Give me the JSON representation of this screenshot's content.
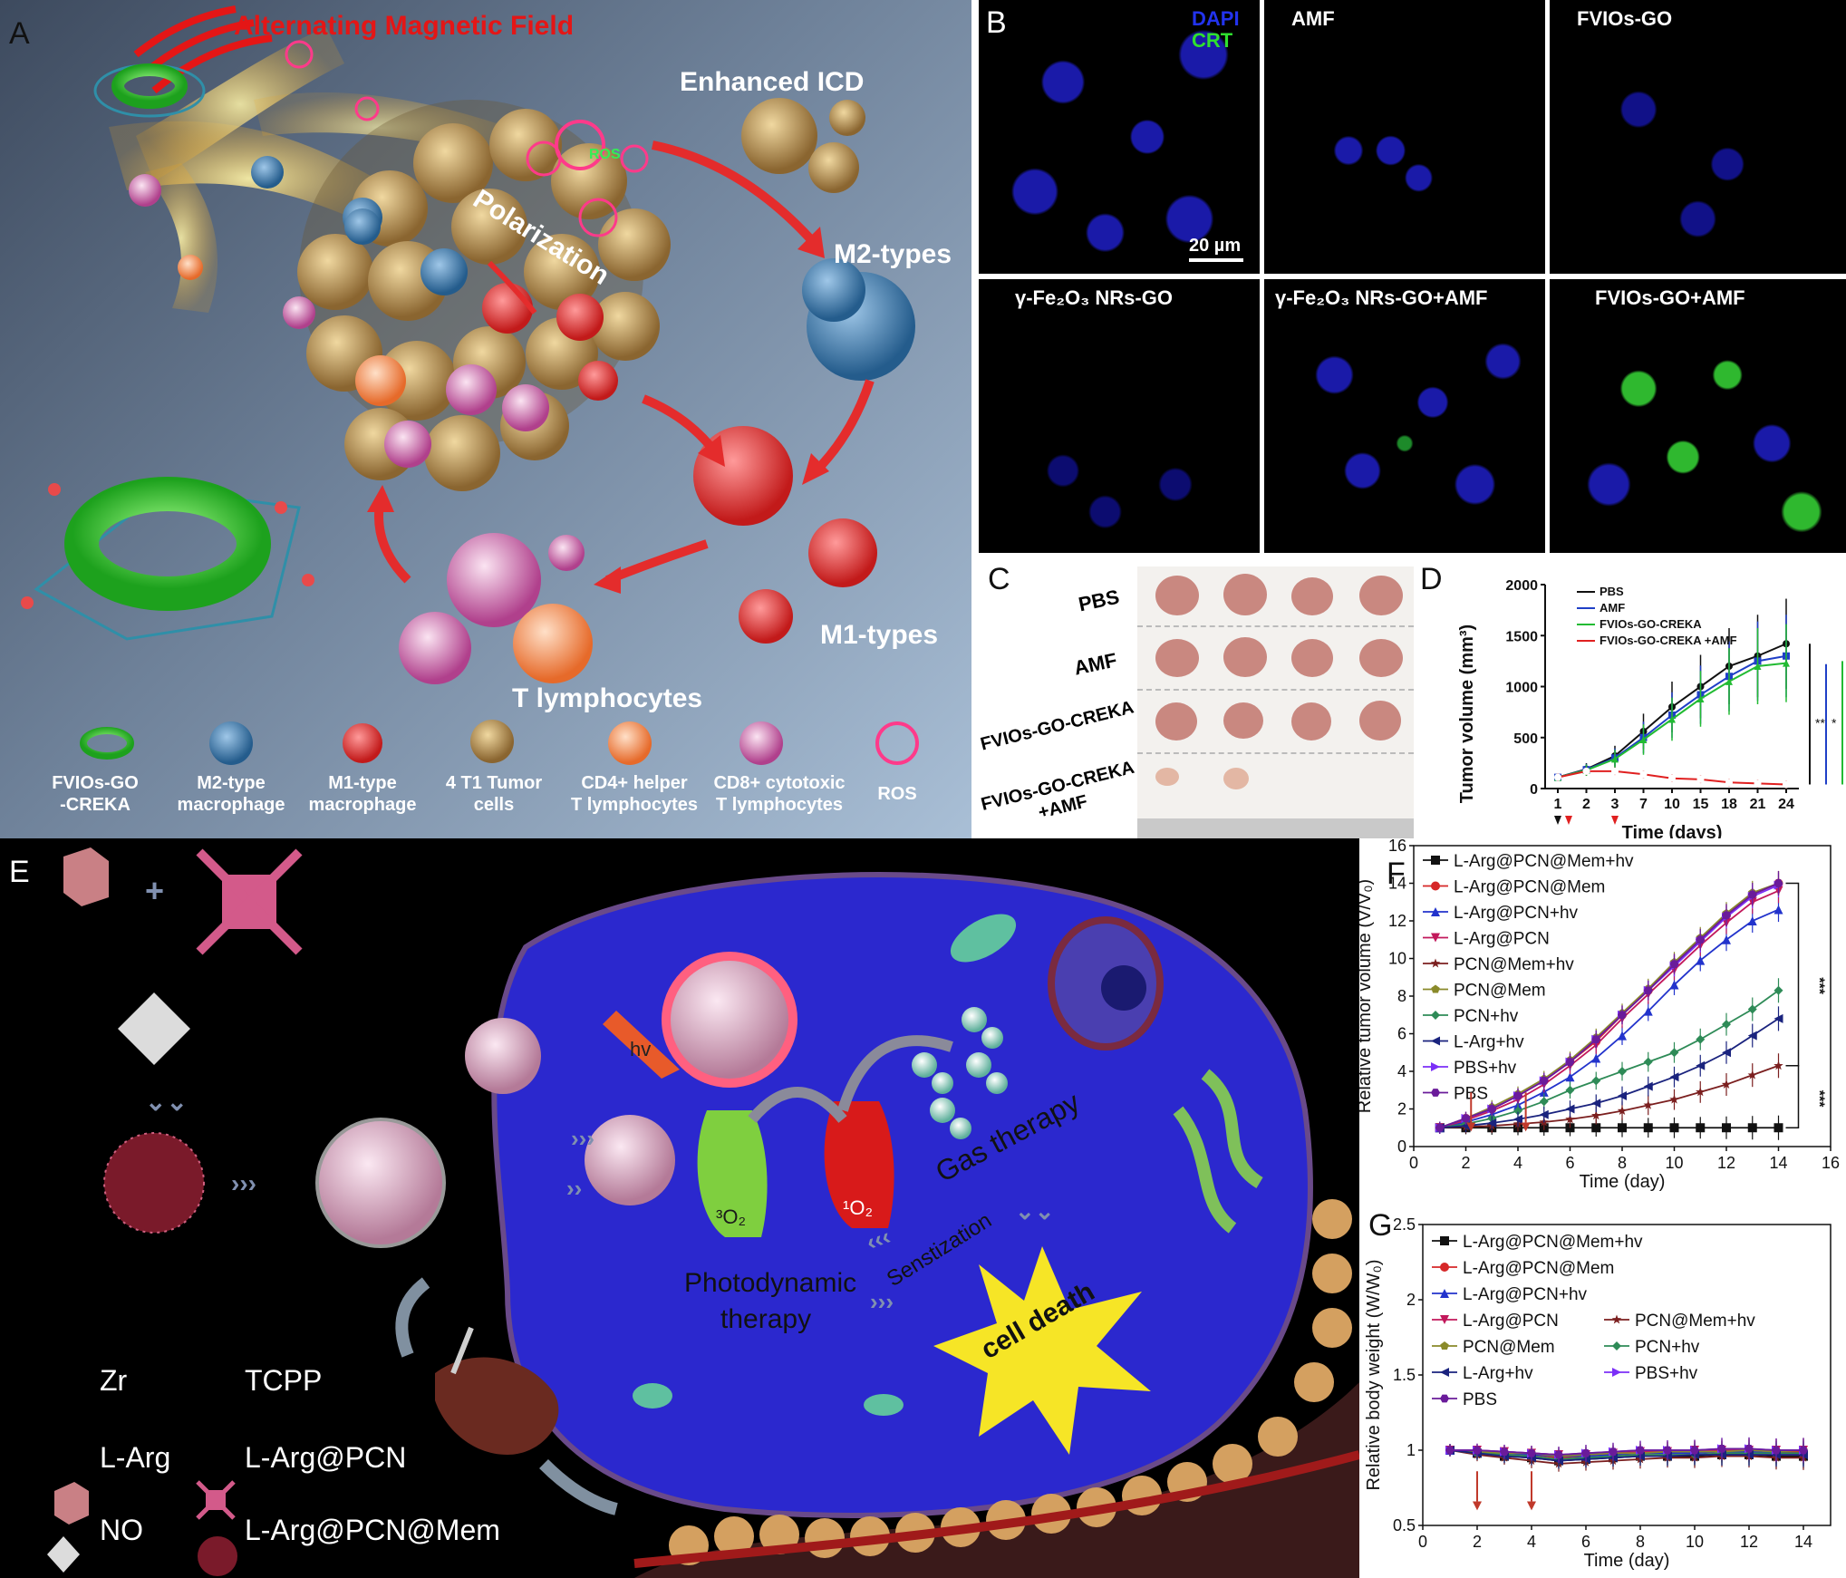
{
  "panelA": {
    "label": "A",
    "field_text": "Alternating Magnetic Field",
    "icd_text": "Enhanced ICD",
    "polarization_text": "Polarization",
    "m2_text": "M2-types",
    "m1_text": "M1-types",
    "t_text": "T lymphocytes",
    "ros_small": "ROS",
    "legend": [
      {
        "line1": "FVIOs-GO",
        "line2": "-CREKA",
        "icon": "green-torus-icon"
      },
      {
        "line1": "M2-type",
        "line2": "macrophage",
        "icon": "blue-cell-icon"
      },
      {
        "line1": "M1-type",
        "line2": "macrophage",
        "icon": "red-cell-icon"
      },
      {
        "line1": "4 T1 Tumor",
        "line2": "cells",
        "icon": "tumor-cell-icon"
      },
      {
        "line1": "CD4+ helper",
        "line2": "T lymphocytes",
        "icon": "orange-cell-icon"
      },
      {
        "line1": "CD8+ cytotoxic",
        "line2": "T lymphocytes",
        "icon": "pink-cell-icon"
      },
      {
        "line1": "ROS",
        "line2": "",
        "icon": "ros-ring-icon"
      }
    ]
  },
  "panelB": {
    "label": "B",
    "dapi": "DAPI",
    "crt": "CRT",
    "scale": "20 µm",
    "titles": [
      "",
      "AMF",
      "FVIOs-GO",
      "γ-Fe₂O₃ NRs-GO",
      "γ-Fe₂O₃ NRs-GO+AMF",
      "FVIOs-GO+AMF"
    ]
  },
  "panelC": {
    "label": "C",
    "rows": [
      "PBS",
      "AMF",
      "FVIOs-GO-CREKA",
      "FVIOs-GO-CREKA +AMF"
    ]
  },
  "panelD": {
    "label": "D",
    "chart_data": {
      "type": "line",
      "x": [
        "1",
        "2",
        "3",
        "7",
        "10",
        "15",
        "18",
        "21",
        "24"
      ],
      "xlabel": "Time (days)",
      "ylabel": "Tumor volume (mm³)",
      "ylim": [
        0,
        2000
      ],
      "yticks": [
        0,
        500,
        1000,
        1500,
        2000
      ],
      "series": [
        {
          "name": "PBS",
          "color": "#111111",
          "values": [
            110,
            190,
            320,
            560,
            800,
            1000,
            1200,
            1300,
            1420
          ]
        },
        {
          "name": "AMF",
          "color": "#1f3fc7",
          "values": [
            110,
            185,
            300,
            500,
            720,
            920,
            1100,
            1250,
            1300
          ]
        },
        {
          "name": "FVIOs-GO-CREKA",
          "color": "#22bb33",
          "values": [
            110,
            180,
            290,
            480,
            680,
            880,
            1050,
            1200,
            1230
          ]
        },
        {
          "name": "FVIOs-GO-CREKA +AMF",
          "color": "#e02020",
          "values": [
            110,
            170,
            170,
            140,
            100,
            90,
            60,
            50,
            40
          ]
        }
      ],
      "sig": [
        "**",
        "*",
        "*"
      ]
    }
  },
  "panelE": {
    "label": "E",
    "hv": "hv",
    "o2_triplet": "³O₂",
    "o2_singlet": "¹O₂",
    "pdt1": "Photodynamic",
    "pdt2": "therapy",
    "gas": "Gas therapy",
    "sens": "Senstization",
    "death": "cell death",
    "legend": [
      {
        "label": "Zr",
        "icon": "zr-cube-icon"
      },
      {
        "label": "TCPP",
        "icon": "tcpp-icon"
      },
      {
        "label": "L-Arg",
        "icon": "l-arg-octahedron-icon"
      },
      {
        "label": "L-Arg@PCN",
        "icon": "l-arg-pcn-icon"
      },
      {
        "label": "NO",
        "icon": "no-molecule-icon"
      },
      {
        "label": "L-Arg@PCN@Mem",
        "icon": "l-arg-pcn-mem-icon"
      }
    ]
  },
  "panelF": {
    "label": "F",
    "chart_data": {
      "type": "line",
      "x": [
        1,
        2,
        3,
        4,
        5,
        6,
        7,
        8,
        9,
        10,
        11,
        12,
        13,
        14
      ],
      "xlim": [
        0,
        16
      ],
      "xticks": [
        0,
        2,
        4,
        6,
        8,
        10,
        12,
        14,
        16
      ],
      "ylim": [
        0,
        16
      ],
      "yticks": [
        0,
        2,
        4,
        6,
        8,
        10,
        12,
        14,
        16
      ],
      "xlabel": "Time (day)",
      "ylabel": "Relative tumor volume (V/V₀)",
      "series": [
        {
          "name": "L-Arg@PCN@Mem+hv",
          "color": "#111111",
          "marker": "square",
          "values": [
            1,
            1,
            1,
            1,
            1,
            1,
            1,
            1,
            1,
            1,
            1,
            1,
            1,
            1
          ]
        },
        {
          "name": "L-Arg@PCN@Mem",
          "color": "#d62728",
          "marker": "circle",
          "values": [
            1,
            1.5,
            2.0,
            2.7,
            3.5,
            4.5,
            5.6,
            7.0,
            8.3,
            9.7,
            11.0,
            12.3,
            13.4,
            14.0
          ]
        },
        {
          "name": "L-Arg@PCN+hv",
          "color": "#2233cc",
          "marker": "triangle-up",
          "values": [
            1,
            1.3,
            1.7,
            2.2,
            2.9,
            3.7,
            4.7,
            5.9,
            7.2,
            8.6,
            9.9,
            11.0,
            12.0,
            12.6
          ]
        },
        {
          "name": "L-Arg@PCN",
          "color": "#c2185b",
          "marker": "triangle-down",
          "values": [
            1,
            1.4,
            1.9,
            2.5,
            3.3,
            4.3,
            5.4,
            6.8,
            8.1,
            9.4,
            10.7,
            11.9,
            13.0,
            13.6
          ]
        },
        {
          "name": "PCN@Mem+hv",
          "color": "#7b1f1f",
          "marker": "star",
          "values": [
            1,
            1.05,
            1.1,
            1.2,
            1.3,
            1.45,
            1.65,
            1.9,
            2.2,
            2.5,
            2.9,
            3.3,
            3.8,
            4.3
          ]
        },
        {
          "name": "PCN@Mem",
          "color": "#8a8a2a",
          "marker": "pentagon",
          "values": [
            1,
            1.5,
            2.1,
            2.8,
            3.6,
            4.6,
            5.8,
            7.1,
            8.4,
            9.8,
            11.1,
            12.4,
            13.5,
            14.0
          ]
        },
        {
          "name": "PCN+hv",
          "color": "#2e8b57",
          "marker": "diamond",
          "values": [
            1,
            1.2,
            1.5,
            1.9,
            2.4,
            3.0,
            3.5,
            4.0,
            4.5,
            5.0,
            5.7,
            6.5,
            7.3,
            8.3
          ]
        },
        {
          "name": "L-Arg+hv",
          "color": "#1a237e",
          "marker": "triangle-left",
          "values": [
            1,
            1.1,
            1.25,
            1.45,
            1.7,
            2.0,
            2.3,
            2.7,
            3.2,
            3.7,
            4.3,
            5.0,
            5.9,
            6.8
          ]
        },
        {
          "name": "PBS+hv",
          "color": "#7b2ff7",
          "marker": "triangle-right",
          "values": [
            1,
            1.5,
            2.0,
            2.7,
            3.5,
            4.5,
            5.7,
            7.0,
            8.3,
            9.6,
            10.9,
            12.2,
            13.3,
            13.9
          ]
        },
        {
          "name": "PBS",
          "color": "#6a1b9a",
          "marker": "hexagon",
          "values": [
            1,
            1.5,
            2.0,
            2.7,
            3.5,
            4.5,
            5.7,
            7.0,
            8.3,
            9.7,
            11.0,
            12.3,
            13.4,
            14.0
          ]
        }
      ],
      "arrows_at_day": [
        2.2,
        4.3
      ],
      "sig": [
        "***",
        "***"
      ]
    }
  },
  "panelG": {
    "label": "G",
    "chart_data": {
      "type": "line",
      "x": [
        1,
        2,
        3,
        4,
        5,
        6,
        7,
        8,
        9,
        10,
        11,
        12,
        13,
        14
      ],
      "xlim": [
        0,
        15
      ],
      "xticks": [
        0,
        2,
        4,
        6,
        8,
        10,
        12,
        14
      ],
      "ylim": [
        0.5,
        2.5
      ],
      "yticks": [
        0.5,
        1.0,
        1.5,
        2.0,
        2.5
      ],
      "xlabel": "Time (day)",
      "ylabel": "Relative body weight (W/W₀)",
      "series": [
        {
          "name": "L-Arg@PCN@Mem+hv",
          "color": "#111111",
          "marker": "square",
          "values": [
            1.0,
            0.98,
            0.96,
            0.95,
            0.93,
            0.94,
            0.95,
            0.96,
            0.96,
            0.96,
            0.97,
            0.97,
            0.96,
            0.96
          ]
        },
        {
          "name": "L-Arg@PCN@Mem",
          "color": "#d62728",
          "marker": "circle",
          "values": [
            1.0,
            0.99,
            0.98,
            0.97,
            0.95,
            0.96,
            0.97,
            0.98,
            0.99,
            0.99,
            0.99,
            1.0,
            0.99,
            0.99
          ]
        },
        {
          "name": "L-Arg@PCN+hv",
          "color": "#2233cc",
          "marker": "triangle-up",
          "values": [
            1.0,
            0.99,
            0.98,
            0.97,
            0.96,
            0.96,
            0.97,
            0.98,
            0.98,
            0.98,
            0.99,
            0.99,
            0.98,
            0.98
          ]
        },
        {
          "name": "L-Arg@PCN",
          "color": "#c2185b",
          "marker": "triangle-down",
          "values": [
            1.0,
            1.0,
            0.99,
            0.98,
            0.97,
            0.97,
            0.98,
            0.99,
            0.99,
            1.0,
            1.0,
            1.0,
            1.0,
            1.0
          ]
        },
        {
          "name": "PCN@Mem+hv",
          "color": "#7b1f1f",
          "marker": "star",
          "values": [
            1.0,
            0.97,
            0.95,
            0.93,
            0.91,
            0.92,
            0.93,
            0.94,
            0.95,
            0.95,
            0.96,
            0.96,
            0.95,
            0.95
          ]
        },
        {
          "name": "PCN@Mem",
          "color": "#8a8a2a",
          "marker": "pentagon",
          "values": [
            1.0,
            0.99,
            0.98,
            0.98,
            0.96,
            0.97,
            0.98,
            0.98,
            0.99,
            0.99,
            0.99,
            1.0,
            0.99,
            1.0
          ]
        },
        {
          "name": "PCN+hv",
          "color": "#2e8b57",
          "marker": "diamond",
          "values": [
            1.0,
            0.98,
            0.97,
            0.96,
            0.94,
            0.95,
            0.96,
            0.97,
            0.97,
            0.97,
            0.98,
            0.98,
            0.98,
            0.98
          ]
        },
        {
          "name": "L-Arg+hv",
          "color": "#1a237e",
          "marker": "triangle-left",
          "values": [
            1.0,
            0.98,
            0.96,
            0.95,
            0.93,
            0.94,
            0.95,
            0.96,
            0.96,
            0.97,
            0.97,
            0.97,
            0.97,
            0.97
          ]
        },
        {
          "name": "PBS+hv",
          "color": "#7b2ff7",
          "marker": "triangle-right",
          "values": [
            1.0,
            1.0,
            0.99,
            0.98,
            0.97,
            0.98,
            0.99,
            1.0,
            1.0,
            1.0,
            1.01,
            1.01,
            1.0,
            1.0
          ]
        },
        {
          "name": "PBS",
          "color": "#6a1b9a",
          "marker": "hexagon",
          "values": [
            1.0,
            1.0,
            0.99,
            0.98,
            0.97,
            0.98,
            0.99,
            1.0,
            1.0,
            1.0,
            1.01,
            1.01,
            1.0,
            1.0
          ]
        }
      ],
      "arrows_at_day": [
        2,
        4
      ]
    }
  }
}
